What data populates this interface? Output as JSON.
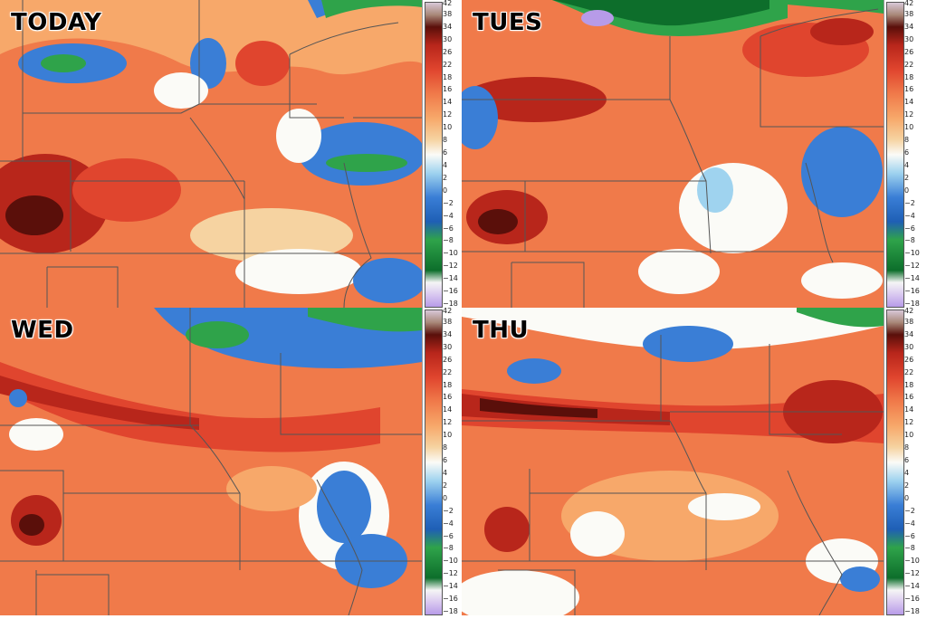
{
  "panels": [
    {
      "label": "TODAY"
    },
    {
      "label": "TUES"
    },
    {
      "label": "WED"
    },
    {
      "label": "THU"
    }
  ],
  "legend": {
    "ticks": [
      "42",
      "38",
      "34",
      "30",
      "26",
      "22",
      "18",
      "16",
      "14",
      "12",
      "10",
      "8",
      "6",
      "4",
      "2",
      "0",
      "−2",
      "−4",
      "−6",
      "−8",
      "−10",
      "−12",
      "−14",
      "−16",
      "−18"
    ]
  },
  "colors": {
    "deep_red": "#5a0f0a",
    "dark_red": "#b8261b",
    "red": "#e0452e",
    "orange": "#f07a4a",
    "light_orange": "#f7a86a",
    "tan": "#f6d3a1",
    "white": "#fbfbf7",
    "light_blue": "#9fd3ef",
    "blue": "#3a7ed6",
    "green": "#2fa34a",
    "dark_green": "#0d6e2b",
    "lavender": "#b79be8"
  }
}
